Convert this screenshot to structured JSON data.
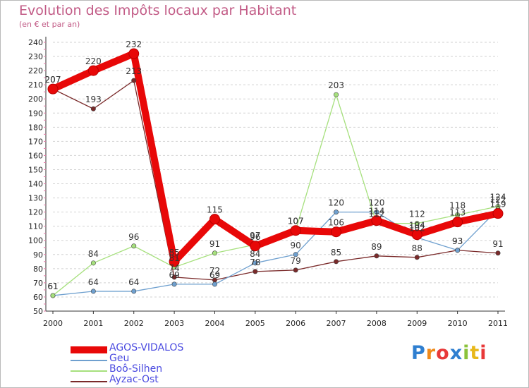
{
  "chart_data": {
    "type": "line",
    "title": "Evolution des Impôts locaux par Habitant",
    "subtitle": "(en € et par an)",
    "x": [
      "2000",
      "2001",
      "2002",
      "2003",
      "2004",
      "2005",
      "2006",
      "2007",
      "2008",
      "2009",
      "2010",
      "2011"
    ],
    "ylim": [
      50,
      240
    ],
    "yticks": [
      50,
      60,
      70,
      80,
      90,
      100,
      110,
      120,
      130,
      140,
      150,
      160,
      170,
      180,
      190,
      200,
      210,
      220,
      230,
      240
    ],
    "grid": "horizontal dashed",
    "legend_position": "bottom-left",
    "series": [
      {
        "name": "AGOS-VIDALOS",
        "color": "#e80808",
        "values": [
          207,
          220,
          232,
          85,
          115,
          96,
          107,
          106,
          114,
          104,
          113,
          119
        ]
      },
      {
        "name": "Geu",
        "color": "#6fa0cf",
        "values": [
          61,
          64,
          64,
          69,
          69,
          84,
          90,
          120,
          120,
          102,
          93,
          122
        ]
      },
      {
        "name": "Boô-Silhen",
        "color": "#a6e07d",
        "values": [
          61,
          84,
          96,
          81,
          91,
          97,
          107,
          203,
          112,
          112,
          118,
          124
        ]
      },
      {
        "name": "Ayzac-Ost",
        "color": "#7a2a2a",
        "values": [
          207,
          193,
          213,
          74,
          72,
          78,
          79,
          85,
          89,
          88,
          93,
          91
        ]
      }
    ]
  },
  "logo": {
    "letters": [
      "P",
      "r",
      "o",
      "x",
      "i",
      "t",
      "i"
    ],
    "colors": [
      "#2f7fd0",
      "#f08a1a",
      "#e83838",
      "#2f7fd0",
      "#8ac23a",
      "#e8b81a",
      "#e83838"
    ]
  }
}
